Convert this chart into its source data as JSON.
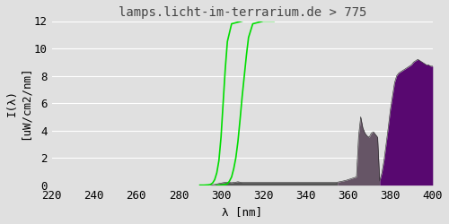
{
  "title": "lamps.licht-im-terrarium.de > 775",
  "xlabel": "λ [nm]",
  "ylabel": "I(λ)\n[uW/cm2/nm]",
  "xlim": [
    220,
    400
  ],
  "ylim": [
    0,
    12
  ],
  "xticks": [
    220,
    240,
    260,
    280,
    300,
    320,
    340,
    360,
    380,
    400
  ],
  "yticks": [
    0,
    2,
    4,
    6,
    8,
    10,
    12
  ],
  "bg_color": "#e0e0e0",
  "plot_bg_color": "#e0e0e0",
  "grid_color": "#ffffff",
  "title_fontsize": 10,
  "axis_fontsize": 9,
  "tick_fontsize": 9,
  "font_family": "monospace",
  "green_curve1_x": [
    290,
    292,
    294,
    295,
    296,
    297,
    298,
    299,
    300,
    301,
    302,
    303,
    305,
    310
  ],
  "green_curve1_y": [
    0.0,
    0.0,
    0.02,
    0.05,
    0.15,
    0.4,
    0.9,
    1.8,
    3.5,
    6.0,
    8.5,
    10.5,
    11.8,
    12.0
  ],
  "green_curve2_x": [
    298,
    300,
    302,
    303,
    304,
    305,
    306,
    307,
    308,
    309,
    310,
    311,
    312,
    313,
    315,
    320,
    325
  ],
  "green_curve2_y": [
    0.0,
    0.0,
    0.05,
    0.1,
    0.3,
    0.6,
    1.2,
    2.0,
    3.2,
    4.8,
    6.5,
    8.0,
    9.5,
    10.8,
    11.8,
    12.0,
    12.0
  ],
  "spectrum_x": [
    295,
    297,
    299,
    300,
    301,
    302,
    303,
    304,
    305,
    306,
    307,
    308,
    309,
    310,
    312,
    314,
    316,
    318,
    320,
    322,
    324,
    326,
    328,
    330,
    332,
    334,
    336,
    338,
    340,
    342,
    344,
    346,
    348,
    350,
    352,
    354,
    355,
    357,
    359,
    361,
    362,
    363,
    364,
    365,
    366,
    367,
    368,
    369,
    370,
    371,
    372,
    373,
    374,
    375,
    376,
    377,
    378,
    379,
    380,
    381,
    382,
    383,
    384,
    385,
    386,
    387,
    388,
    389,
    390,
    391,
    392,
    393,
    394,
    395,
    396,
    397,
    398,
    399,
    400
  ],
  "spectrum_y": [
    0.0,
    0.05,
    0.12,
    0.15,
    0.18,
    0.2,
    0.22,
    0.2,
    0.18,
    0.2,
    0.22,
    0.25,
    0.22,
    0.2,
    0.2,
    0.2,
    0.2,
    0.2,
    0.2,
    0.2,
    0.2,
    0.2,
    0.2,
    0.2,
    0.2,
    0.2,
    0.2,
    0.2,
    0.2,
    0.2,
    0.2,
    0.2,
    0.2,
    0.2,
    0.2,
    0.2,
    0.22,
    0.28,
    0.35,
    0.45,
    0.5,
    0.55,
    0.6,
    3.6,
    5.0,
    4.2,
    3.8,
    3.6,
    3.5,
    3.8,
    3.9,
    3.7,
    3.5,
    0.3,
    0.9,
    1.8,
    3.0,
    4.2,
    5.5,
    6.5,
    7.5,
    8.0,
    8.2,
    8.3,
    8.4,
    8.5,
    8.6,
    8.7,
    8.8,
    9.0,
    9.1,
    9.2,
    9.1,
    9.0,
    8.9,
    8.8,
    8.8,
    8.7,
    8.7
  ],
  "color_dark_gray": "#555555",
  "color_medium_gray": "#665566",
  "color_purple": "#580870",
  "color_green": "#00dd00",
  "boundary1": 355,
  "boundary2": 375
}
